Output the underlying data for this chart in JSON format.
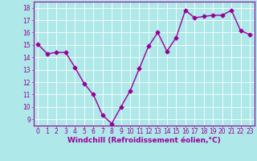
{
  "x": [
    0,
    1,
    2,
    3,
    4,
    5,
    6,
    7,
    8,
    9,
    10,
    11,
    12,
    13,
    14,
    15,
    16,
    17,
    18,
    19,
    20,
    21,
    22,
    23
  ],
  "y": [
    15.05,
    14.3,
    14.4,
    14.4,
    13.2,
    11.9,
    11.0,
    9.35,
    8.65,
    10.0,
    11.3,
    13.1,
    14.9,
    16.0,
    14.5,
    15.6,
    17.8,
    17.2,
    17.3,
    17.4,
    17.4,
    17.8,
    16.15,
    15.85
  ],
  "line_color": "#990099",
  "marker": "D",
  "marker_size": 2.5,
  "bg_color": "#aee8e8",
  "grid_color": "#ffffff",
  "xlabel": "Windchill (Refroidissement éolien,°C)",
  "xlabel_color": "#990099",
  "ylabel_ticks": [
    9,
    10,
    11,
    12,
    13,
    14,
    15,
    16,
    17,
    18
  ],
  "xlim": [
    -0.5,
    23.5
  ],
  "ylim": [
    8.5,
    18.5
  ],
  "xtick_labels": [
    "0",
    "1",
    "2",
    "3",
    "4",
    "5",
    "6",
    "7",
    "8",
    "9",
    "10",
    "11",
    "12",
    "13",
    "14",
    "15",
    "16",
    "17",
    "18",
    "19",
    "20",
    "21",
    "22",
    "23"
  ],
  "tick_color": "#990099",
  "tick_fontsize": 5.5,
  "xlabel_fontsize": 6.5,
  "line_width": 1.0
}
